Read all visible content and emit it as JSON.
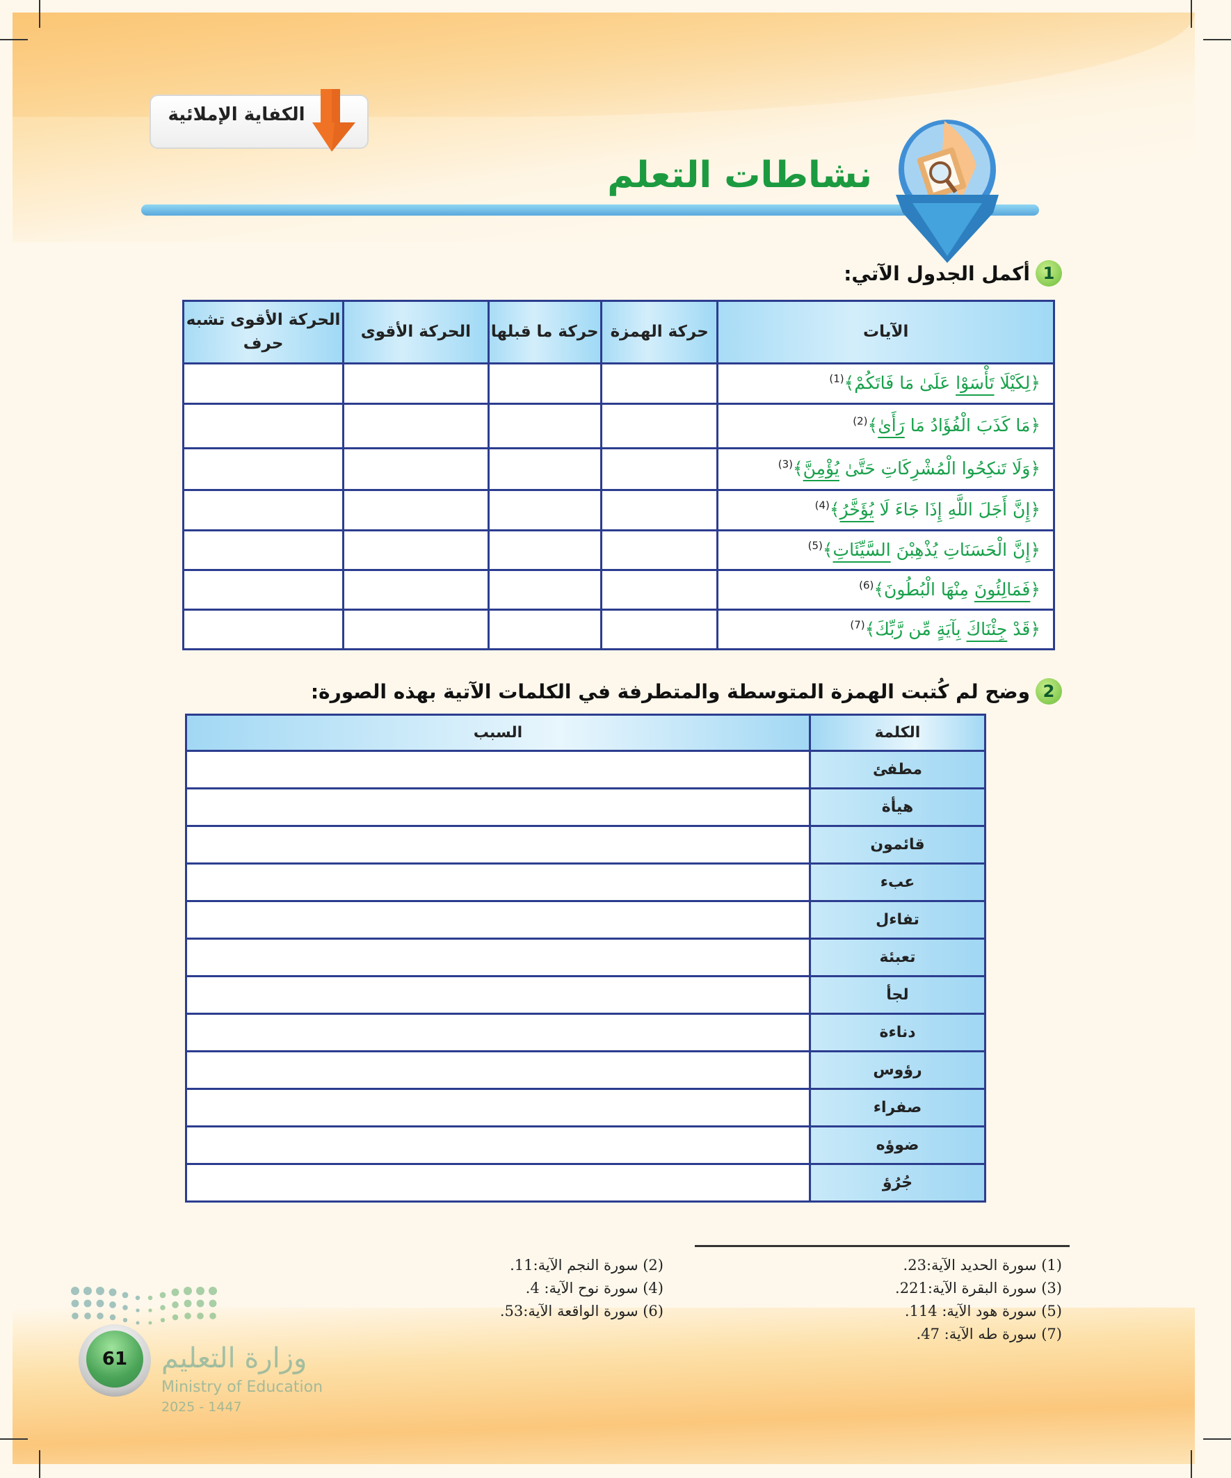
{
  "header": {
    "section_tag": "الكفاية الإملائية",
    "title": "نشاطات التعلم",
    "colors": {
      "title": "#1c9a40",
      "tag_arrow": "#f07325",
      "bar": "#5aa8dc"
    }
  },
  "activity1": {
    "number": "1",
    "prompt": "أكمل الجدول الآتي:",
    "columns": [
      "الآيات",
      "حركة الهمزة",
      "حركة ما قبلها",
      "الحركة الأقوى",
      "الحركة الأقوى تشبه حرف"
    ],
    "rows": [
      {
        "pre": "﴿لِكَيْلَا ",
        "u": "تَأْسَوْا",
        "post": " عَلَىٰ مَا فَاتَكُمْ﴾",
        "ref": "(1)"
      },
      {
        "pre": "﴿مَا كَذَبَ الْفُؤَادُ مَا ",
        "u": "رَأَىٰ",
        "post": "﴾",
        "ref": "(2)"
      },
      {
        "pre": "﴿وَلَا تَنكِحُوا الْمُشْرِكَاتِ حَتَّىٰ ",
        "u": "يُؤْمِنَّ",
        "post": "﴾",
        "ref": "(3)"
      },
      {
        "pre": "﴿إِنَّ أَجَلَ اللَّهِ إِذَا جَاءَ لَا ",
        "u": "يُؤَخَّرُ",
        "post": "﴾",
        "ref": "(4)"
      },
      {
        "pre": "﴿إِنَّ الْحَسَنَاتِ يُذْهِبْنَ ",
        "u": "السَّيِّئَاتِ",
        "post": "﴾",
        "ref": "(5)"
      },
      {
        "pre": "﴿",
        "u": "فَمَالِئُونَ",
        "post": " مِنْهَا الْبُطُونَ﴾",
        "ref": "(6)"
      },
      {
        "pre": "﴿قَدْ ",
        "u": "جِئْنَاكَ",
        "post": " بِآيَةٍ مِّن رَّبِّكَ﴾",
        "ref": "(7)"
      }
    ]
  },
  "activity2": {
    "number": "2",
    "prompt": "وضح لم كُتبت الهمزة المتوسطة والمتطرفة في الكلمات الآتية بهذه الصورة:",
    "columns": [
      "الكلمة",
      "السبب"
    ],
    "words": [
      "مطفئ",
      "هيأة",
      "قائمون",
      "عبء",
      "تفاءل",
      "تعبئة",
      "لجأ",
      "دناءة",
      "رؤوس",
      "صفراء",
      "ضوؤه",
      "جُرُؤ"
    ]
  },
  "footnotes": {
    "right": [
      "(1) سورة الحديد الآية:23.",
      "(3) سورة البقرة الآية:221.",
      "(5) سورة هود الآية: 114.",
      "(7) سورة طه الآية: 47."
    ],
    "left": [
      "(2) سورة النجم الآية:11.",
      "(4) سورة نوح الآية: 4.",
      "(6) سورة الواقعة الآية:53."
    ]
  },
  "footer": {
    "page_number": "61",
    "ministry_ar": "وزارة التعليم",
    "ministry_en": "Ministry of Education",
    "years": "2025 - 1447"
  }
}
